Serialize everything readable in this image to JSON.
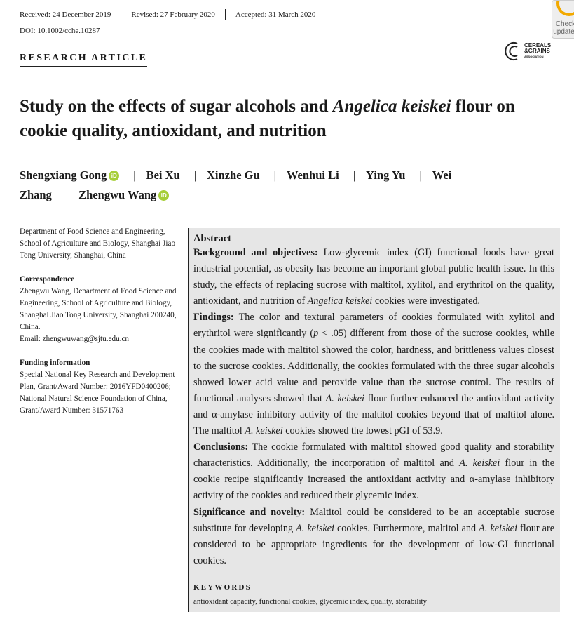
{
  "history": {
    "received": "Received: 24 December 2019",
    "revised": "Revised: 27 February 2020",
    "accepted": "Accepted: 31 March 2020"
  },
  "doi": "DOI: 10.1002/cche.10287",
  "article_type": "RESEARCH ARTICLE",
  "logo": {
    "line1": "CEREALS",
    "line2": "&GRAINS",
    "line3": "ASSOCIATION"
  },
  "check_updates": {
    "line1": "Check",
    "line2": "updates"
  },
  "title": [
    {
      "t": "Study on the effects of sugar alcohols and "
    },
    {
      "t": "Angelica keiskei",
      "i": true
    },
    {
      "t": " flour on cookie quality, antioxidant, and nutrition"
    }
  ],
  "authors": [
    {
      "name": "Shengxiang Gong",
      "orcid": true
    },
    {
      "name": "Bei Xu"
    },
    {
      "name": "Xinzhe Gu"
    },
    {
      "name": "Wenhui Li"
    },
    {
      "name": "Ying Yu"
    },
    {
      "name": "Wei Zhang"
    },
    {
      "name": "Zhengwu Wang",
      "orcid": true
    }
  ],
  "orcid_label": "iD",
  "sidebar": {
    "affiliation": "Department of Food Science and Engineering, School of Agriculture and Biology, Shanghai Jiao Tong University, Shanghai, China",
    "correspondence_heading": "Correspondence",
    "correspondence": "Zhengwu Wang, Department of Food Science and Engineering, School of Agriculture and Biology, Shanghai Jiao Tong University, Shanghai 200240, China.",
    "email": "Email: zhengwuwang@sjtu.edu.cn",
    "funding_heading": "Funding information",
    "funding": "Special National Key Research and Development Plan, Grant/Award Number: 2016YFD0400206; National Natural Science Foundation of China, Grant/Award Number: 31571763"
  },
  "abstract": {
    "heading": "Abstract",
    "paragraphs": [
      [
        {
          "t": "Background and objectives:",
          "b": true
        },
        {
          "t": " Low-glycemic index (GI) functional foods have great industrial potential, as obesity has become an important global public health issue. In this study, the effects of replacing sucrose with maltitol, xylitol, and erythritol on the quality, antioxidant, and nutrition of "
        },
        {
          "t": "Angelica keiskei",
          "i": true
        },
        {
          "t": " cookies were investigated."
        }
      ],
      [
        {
          "t": "Findings:",
          "b": true
        },
        {
          "t": " The color and textural parameters of cookies formulated with xylitol and erythritol were significantly ("
        },
        {
          "t": "p",
          "i": true
        },
        {
          "t": " < .05) different from those of the sucrose cookies, while the cookies made with maltitol showed the color, hardness, and brittleness values closest to the sucrose cookies. Additionally, the cookies formulated with the three sugar alcohols showed lower acid value and peroxide value than the sucrose control. The results of functional analyses showed that "
        },
        {
          "t": "A. keiskei",
          "i": true
        },
        {
          "t": " flour further enhanced the antioxidant activity and α-amylase inhibitory activity of the maltitol cookies beyond that of maltitol alone. The maltitol "
        },
        {
          "t": "A. keiskei",
          "i": true
        },
        {
          "t": " cookies showed the lowest pGI of 53.9."
        }
      ],
      [
        {
          "t": "Conclusions:",
          "b": true
        },
        {
          "t": " The cookie formulated with maltitol showed good quality and storability characteristics. Additionally, the incorporation of maltitol and "
        },
        {
          "t": "A. keiskei",
          "i": true
        },
        {
          "t": " flour in the cookie recipe significantly increased the antioxidant activity and α-amylase inhibitory activity of the cookies and reduced their glycemic index."
        }
      ],
      [
        {
          "t": "Significance and novelty:",
          "b": true
        },
        {
          "t": " Maltitol could be considered to be an acceptable sucrose substitute for developing "
        },
        {
          "t": "A. keiskei",
          "i": true
        },
        {
          "t": " cookies. Furthermore, maltitol and "
        },
        {
          "t": "A. keiskei",
          "i": true
        },
        {
          "t": " flour are considered to be appropriate ingredients for the development of low-GI functional cookies."
        }
      ]
    ]
  },
  "keywords": {
    "heading": "KEYWORDS",
    "text": "antioxidant capacity, functional cookies, glycemic index, quality, storability"
  }
}
